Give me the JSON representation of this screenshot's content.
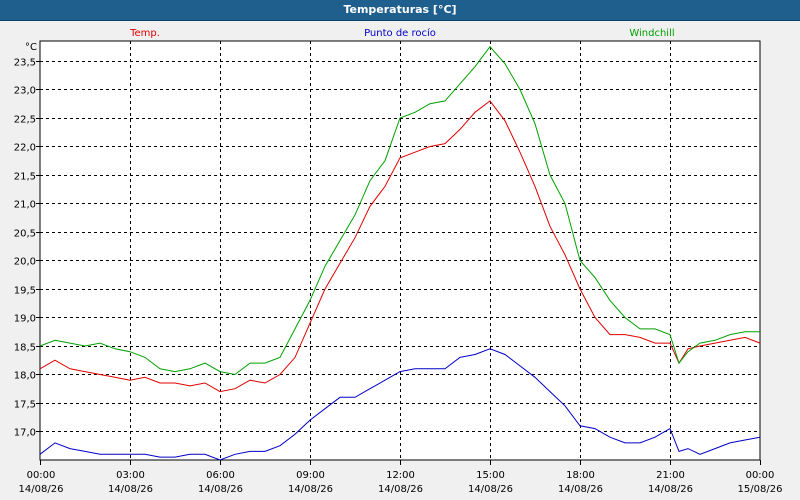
{
  "window": {
    "title": "Temperaturas [°C]"
  },
  "colors": {
    "temp": "#E00000",
    "dew": "#0000C8",
    "chill": "#00A000",
    "grid": "#000000",
    "titlebar": "#1E5F8E"
  },
  "chart_data": {
    "type": "line",
    "title": "Temperaturas [°C]",
    "ylabel": "°C",
    "xlabel": "",
    "ylim": [
      16.5,
      23.85
    ],
    "xlim": [
      0,
      24
    ],
    "grid": true,
    "legend_position": "top",
    "yticks": [
      "17,0",
      "17,5",
      "18,0",
      "18,5",
      "19,0",
      "19,5",
      "20,0",
      "20,5",
      "21,0",
      "21,5",
      "22,0",
      "22,5",
      "23,0",
      "23,5"
    ],
    "ytick_values": [
      17.0,
      17.5,
      18.0,
      18.5,
      19.0,
      19.5,
      20.0,
      20.5,
      21.0,
      21.5,
      22.0,
      22.5,
      23.0,
      23.5
    ],
    "xtick_values": [
      0,
      3,
      6,
      9,
      12,
      15,
      18,
      21,
      24
    ],
    "xtick_times": [
      "00:00",
      "03:00",
      "06:00",
      "09:00",
      "12:00",
      "15:00",
      "18:00",
      "21:00",
      "00:00"
    ],
    "xtick_dates": [
      "14/08/26",
      "14/08/26",
      "14/08/26",
      "14/08/26",
      "14/08/26",
      "14/08/26",
      "14/08/26",
      "14/08/26",
      "15/08/26"
    ],
    "series": [
      {
        "name": "Temp.",
        "color": "#E00000",
        "x": [
          0,
          0.5,
          1,
          1.5,
          2,
          2.5,
          3,
          3.5,
          4,
          4.5,
          5,
          5.5,
          6,
          6.5,
          7,
          7.5,
          8,
          8.5,
          9,
          9.5,
          10,
          10.5,
          11,
          11.5,
          12,
          12.5,
          13,
          13.5,
          14,
          14.5,
          15,
          15.5,
          16,
          16.5,
          17,
          17.5,
          18,
          18.5,
          19,
          19.5,
          20,
          20.5,
          21,
          21.3,
          21.6,
          22,
          22.5,
          23,
          23.5,
          24
        ],
        "y": [
          18.1,
          18.25,
          18.1,
          18.05,
          18.0,
          17.95,
          17.9,
          17.95,
          17.85,
          17.85,
          17.8,
          17.85,
          17.7,
          17.75,
          17.9,
          17.85,
          18.0,
          18.3,
          18.9,
          19.5,
          19.95,
          20.4,
          20.95,
          21.3,
          21.8,
          21.9,
          22.0,
          22.05,
          22.3,
          22.6,
          22.8,
          22.45,
          21.9,
          21.3,
          20.6,
          20.1,
          19.5,
          19.0,
          18.7,
          18.7,
          18.65,
          18.55,
          18.55,
          18.2,
          18.45,
          18.5,
          18.55,
          18.6,
          18.65,
          18.55
        ]
      },
      {
        "name": "Punto de rocío",
        "color": "#0000C8",
        "x": [
          0,
          0.5,
          1,
          1.5,
          2,
          2.5,
          3,
          3.5,
          4,
          4.5,
          5,
          5.5,
          6,
          6.5,
          7,
          7.5,
          8,
          8.5,
          9,
          9.5,
          10,
          10.5,
          11,
          11.5,
          12,
          12.5,
          13,
          13.5,
          14,
          14.5,
          15,
          15.5,
          16,
          16.5,
          17,
          17.5,
          18,
          18.5,
          19,
          19.5,
          20,
          20.5,
          21,
          21.3,
          21.6,
          22,
          22.5,
          23,
          23.5,
          24
        ],
        "y": [
          16.6,
          16.8,
          16.7,
          16.65,
          16.6,
          16.6,
          16.6,
          16.6,
          16.55,
          16.55,
          16.6,
          16.6,
          16.5,
          16.6,
          16.65,
          16.65,
          16.75,
          16.95,
          17.2,
          17.4,
          17.6,
          17.6,
          17.75,
          17.9,
          18.05,
          18.1,
          18.1,
          18.1,
          18.3,
          18.35,
          18.45,
          18.35,
          18.15,
          17.95,
          17.7,
          17.45,
          17.1,
          17.05,
          16.9,
          16.8,
          16.8,
          16.9,
          17.05,
          16.65,
          16.7,
          16.6,
          16.7,
          16.8,
          16.85,
          16.9
        ]
      },
      {
        "name": "Windchill",
        "color": "#00A000",
        "x": [
          0,
          0.5,
          1,
          1.5,
          2,
          2.5,
          3,
          3.5,
          4,
          4.5,
          5,
          5.5,
          6,
          6.5,
          7,
          7.5,
          8,
          8.5,
          9,
          9.5,
          10,
          10.5,
          11,
          11.5,
          12,
          12.5,
          13,
          13.5,
          14,
          14.5,
          15,
          15.5,
          16,
          16.5,
          17,
          17.5,
          18,
          18.5,
          19,
          19.5,
          20,
          20.5,
          21,
          21.3,
          21.6,
          22,
          22.5,
          23,
          23.5,
          24
        ],
        "y": [
          18.5,
          18.6,
          18.55,
          18.5,
          18.55,
          18.45,
          18.4,
          18.3,
          18.1,
          18.05,
          18.1,
          18.2,
          18.05,
          18.0,
          18.2,
          18.2,
          18.3,
          18.8,
          19.3,
          19.9,
          20.35,
          20.8,
          21.4,
          21.75,
          22.5,
          22.6,
          22.75,
          22.8,
          23.1,
          23.4,
          23.75,
          23.45,
          23.0,
          22.4,
          21.5,
          21.0,
          20.0,
          19.7,
          19.3,
          19.0,
          18.8,
          18.8,
          18.7,
          18.2,
          18.4,
          18.55,
          18.6,
          18.7,
          18.75,
          18.75
        ]
      }
    ]
  }
}
